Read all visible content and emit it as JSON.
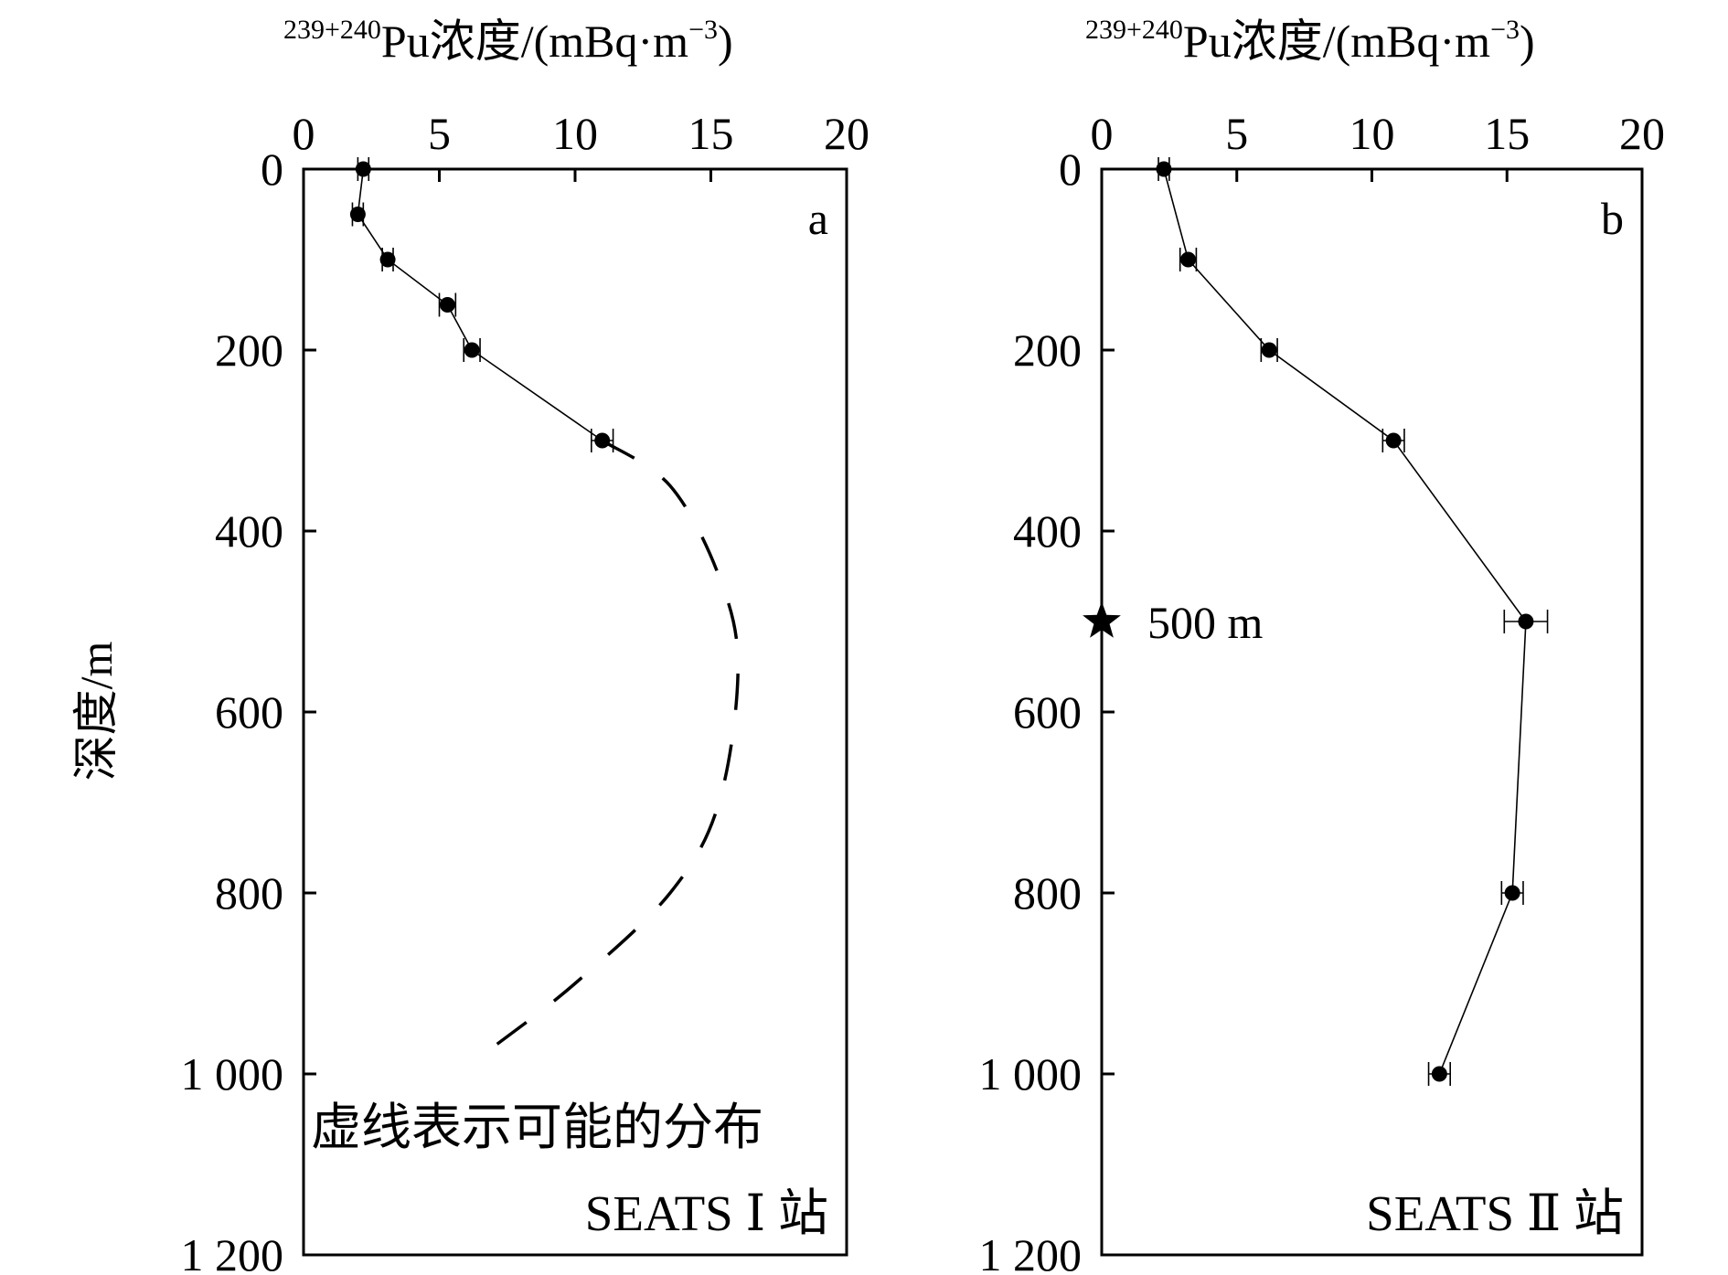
{
  "chart_data": [
    {
      "type": "line",
      "panel_label": "a",
      "title_sup": "239+240",
      "title_main": "Pu浓度/(mBq·m",
      "title_sup2": "−3",
      "title_end": ")",
      "xlabel": "239+240Pu浓度/(mBq·m−3)",
      "ylabel": "深度/m",
      "xlim": [
        0,
        20
      ],
      "ylim": [
        0,
        1200
      ],
      "y_inverted": true,
      "x_axis_position": "top",
      "xticks": [
        "0",
        "5",
        "10",
        "15",
        "20"
      ],
      "yticks": [
        "0",
        "200",
        "400",
        "600",
        "800",
        "1 000",
        "1 200"
      ],
      "series": [
        {
          "points": [
            {
              "x": 2.2,
              "y": 0,
              "xerr": 0.2
            },
            {
              "x": 2.0,
              "y": 50,
              "xerr": 0.2
            },
            {
              "x": 3.1,
              "y": 100,
              "xerr": 0.2
            },
            {
              "x": 5.3,
              "y": 150,
              "xerr": 0.3
            },
            {
              "x": 6.2,
              "y": 200,
              "xerr": 0.3
            },
            {
              "x": 11.0,
              "y": 300,
              "xerr": 0.4
            }
          ]
        }
      ],
      "dashed_curve": [
        {
          "x": 11.0,
          "y": 300
        },
        {
          "x": 13.5,
          "y": 350
        },
        {
          "x": 15.3,
          "y": 450
        },
        {
          "x": 16.0,
          "y": 550
        },
        {
          "x": 15.3,
          "y": 700
        },
        {
          "x": 13.5,
          "y": 800
        },
        {
          "x": 10.0,
          "y": 900
        },
        {
          "x": 7.0,
          "y": 970
        }
      ],
      "annotation": "虚线表示可能的分布",
      "station": "SEATS Ⅰ 站"
    },
    {
      "type": "line",
      "panel_label": "b",
      "title_sup": "239+240",
      "title_main": "Pu浓度/(mBq·m",
      "title_sup2": "−3",
      "title_end": ")",
      "xlabel": "239+240Pu浓度/(mBq·m−3)",
      "ylabel": "",
      "xlim": [
        0,
        20
      ],
      "ylim": [
        0,
        1200
      ],
      "y_inverted": true,
      "x_axis_position": "top",
      "xticks": [
        "0",
        "5",
        "10",
        "15",
        "20"
      ],
      "yticks": [
        "0",
        "200",
        "400",
        "600",
        "800",
        "1 000",
        "1 200"
      ],
      "series": [
        {
          "points": [
            {
              "x": 2.3,
              "y": 0,
              "xerr": 0.2
            },
            {
              "x": 3.2,
              "y": 100,
              "xerr": 0.3
            },
            {
              "x": 6.2,
              "y": 200,
              "xerr": 0.3
            },
            {
              "x": 10.8,
              "y": 300,
              "xerr": 0.4
            },
            {
              "x": 15.7,
              "y": 500,
              "xerr": 0.8
            },
            {
              "x": 15.2,
              "y": 800,
              "xerr": 0.4
            },
            {
              "x": 12.5,
              "y": 1000,
              "xerr": 0.4
            }
          ]
        }
      ],
      "star_marker": {
        "y": 500,
        "label": "500 m"
      },
      "station": "SEATS Ⅱ 站"
    }
  ]
}
